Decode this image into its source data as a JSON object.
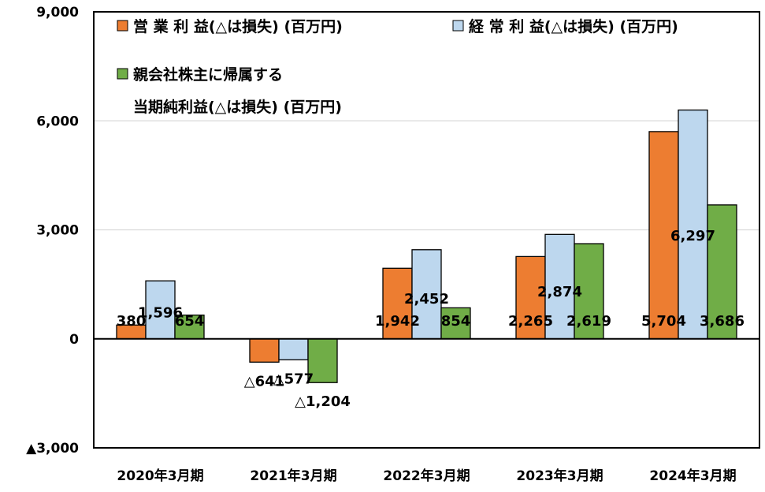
{
  "chart_data": {
    "type": "bar",
    "categories": [
      "2020年3月期",
      "2021年3月期",
      "2022年3月期",
      "2023年3月期",
      "2024年3月期"
    ],
    "series": [
      {
        "name": "営 業 利 益(△は損失) (百万円)",
        "color": "#ED7D31",
        "values": [
          380,
          -641,
          1942,
          2265,
          5704
        ],
        "labels": [
          "380",
          "△641",
          "1,942",
          "2,265",
          "5,704"
        ]
      },
      {
        "name": "経 常 利 益(△は損失) (百万円)",
        "color": "#BDD7EE",
        "values": [
          1596,
          -577,
          2452,
          2874,
          6297
        ],
        "labels": [
          "1,596",
          "△577",
          "2,452",
          "2,874",
          "6,297"
        ]
      },
      {
        "name_lines": [
          "親会社株主に帰属する",
          "当期純利益(△は損失) (百万円)"
        ],
        "color": "#70AD47",
        "values": [
          654,
          -1204,
          854,
          2619,
          3686
        ],
        "labels": [
          "654",
          "△1,204",
          "854",
          "2,619",
          "3,686"
        ]
      }
    ],
    "yticks": [
      {
        "value": 9000,
        "label": "9,000"
      },
      {
        "value": 6000,
        "label": "6,000"
      },
      {
        "value": 3000,
        "label": "3,000"
      },
      {
        "value": 0,
        "label": "0"
      },
      {
        "value": -3000,
        "label": "▲3,000"
      }
    ],
    "ylim": [
      -3000,
      9000
    ],
    "grid": true,
    "legend_position": "top"
  }
}
